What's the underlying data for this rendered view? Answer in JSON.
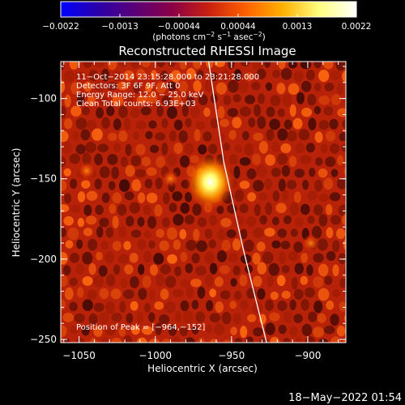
{
  "chart_data": {
    "type": "heatmap",
    "title": "Reconstructed RHESSI Image",
    "xlabel": "Heliocentric X (arcsec)",
    "ylabel": "Heliocentric Y (arcsec)",
    "xlim": [
      -1062,
      -875
    ],
    "ylim": [
      -252,
      -77
    ],
    "x_ticks": [
      {
        "value": -1050,
        "label": "−1050"
      },
      {
        "value": -1000,
        "label": "−1000"
      },
      {
        "value": -950,
        "label": "−950"
      },
      {
        "value": -900,
        "label": "−900"
      }
    ],
    "y_ticks": [
      {
        "value": -100,
        "label": "−100"
      },
      {
        "value": -150,
        "label": "−150"
      },
      {
        "value": -200,
        "label": "−200"
      },
      {
        "value": -250,
        "label": "−250"
      }
    ],
    "colorbar": {
      "min": -0.0022,
      "max": 0.0022,
      "tick_labels": [
        "−0.0022",
        "−0.0013",
        "−0.00044",
        "0.00044",
        "0.0013",
        "0.0022"
      ],
      "units_text": "(photons cm",
      "units_exp1": "−2",
      "units_mid": " s",
      "units_exp2": "−1",
      "units_mid2": " asec",
      "units_exp3": "−2",
      "units_close": ")",
      "colormap": [
        "#0000ff",
        "#2a00a8",
        "#5a0078",
        "#8a0048",
        "#c82010",
        "#ff6000",
        "#ffb000",
        "#ffff80",
        "#ffffff"
      ]
    },
    "info_lines": [
      "11−Oct−2014 23:15:28.000 to 23:21:28.000",
      "Detectors: 3F 6F 9F, Att 0",
      "Energy Range: 12.0 − 25.0 keV",
      "Clean    Total counts: 6.93E+03"
    ],
    "peak_text": "Position of Peak = [−964,−152]",
    "peak": {
      "x": -964,
      "y": -152
    },
    "secondary_sources": [
      {
        "x": -898,
        "y": -190
      },
      {
        "x": -1045,
        "y": -145
      },
      {
        "x": -990,
        "y": -150
      }
    ],
    "limb_curve": [
      {
        "x": -965,
        "y": -77
      },
      {
        "x": -955,
        "y": -140
      },
      {
        "x": -942,
        "y": -195
      },
      {
        "x": -927,
        "y": -252
      }
    ],
    "grid": false
  },
  "footer": {
    "timestamp": "18−May−2022 01:54"
  }
}
